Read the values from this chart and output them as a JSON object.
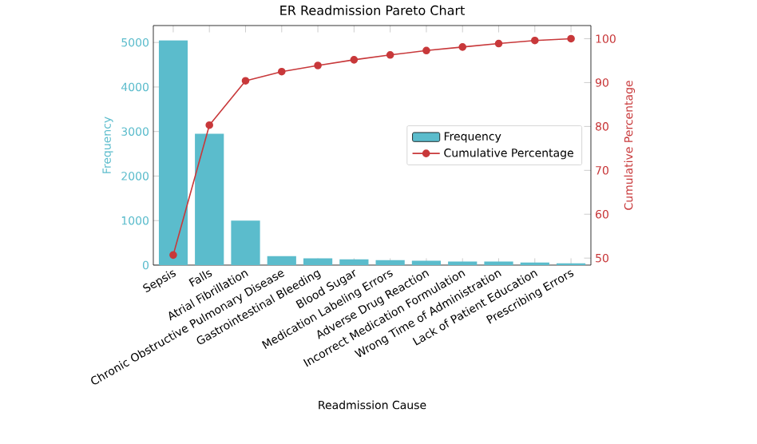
{
  "chart_data": {
    "type": "bar",
    "title": "ER Readmission Pareto Chart",
    "xlabel": "Readmission Cause",
    "ylabel": "Frequency",
    "y2label": "Cumulative Percentage",
    "categories": [
      "Sepsis",
      "Falls",
      "Atrial Fibrillation",
      "Chronic Obstructive Pulmonary Disease",
      "Gastrointestinal Bleeding",
      "Blood Sugar",
      "Medication Labeling Errors",
      "Adverse Drug Reaction",
      "Incorrect Medication Formulation",
      "Wrong Time of Administration",
      "Lack of Patient Education",
      "Prescribing Errors"
    ],
    "series": [
      {
        "name": "Frequency",
        "color": "#5bbccc",
        "values": [
          5050,
          2950,
          1000,
          200,
          150,
          130,
          110,
          100,
          80,
          80,
          60,
          40
        ]
      },
      {
        "name": "Cumulative Percentage",
        "type": "line",
        "axis": "y2",
        "color": "#c8383a",
        "values": [
          50.7,
          80.3,
          90.4,
          92.5,
          93.9,
          95.2,
          96.3,
          97.3,
          98.1,
          98.9,
          99.6,
          100
        ]
      }
    ],
    "ylim": [
      0,
      5380
    ],
    "yticks": [
      0,
      1000,
      2000,
      3000,
      4000,
      5000
    ],
    "y2lim": [
      48.4,
      103
    ],
    "y2ticks": [
      50,
      60,
      70,
      80,
      90,
      100
    ],
    "marker": "circle",
    "legend": "right"
  }
}
